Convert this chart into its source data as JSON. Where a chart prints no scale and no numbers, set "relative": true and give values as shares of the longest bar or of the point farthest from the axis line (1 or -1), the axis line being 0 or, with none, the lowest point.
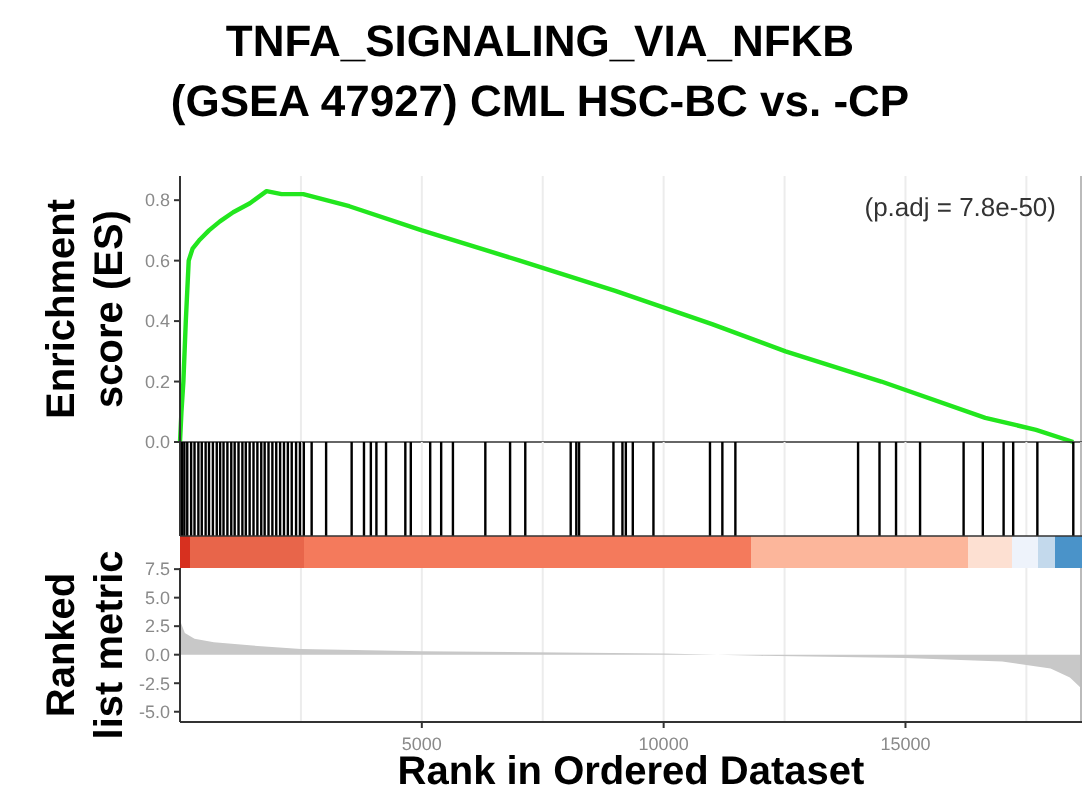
{
  "chart_data": [
    {
      "type": "line",
      "title": "TNFA_SIGNALING_VIA_NFKB\n(GSEA 47927) CML HSC-BC vs. -CP",
      "ylabel": "Enrichment\nscore (ES)",
      "annotations": [
        "(p.adj = 7.8e-50)"
      ],
      "tick_labels": "y",
      "grid": "x",
      "xlim": [
        0,
        18650
      ],
      "xticks": [
        {
          "value": 2500,
          "label": null
        },
        5000,
        {
          "value": 7500,
          "label": null
        },
        10000,
        {
          "value": 12500,
          "label": null
        },
        15000,
        {
          "value": 17500,
          "label": null
        }
      ],
      "ylim": [
        0,
        0.88
      ],
      "yticks": [
        {
          "value": 0,
          "label": "0.0"
        },
        0.2,
        0.4,
        0.6,
        0.8
      ],
      "series": [
        {
          "color": "#22e61e",
          "x": [
            0,
            30,
            70,
            120,
            180,
            260,
            413,
            600,
            826,
            1100,
            1446,
            1790,
            2100,
            2548,
            3500,
            5000,
            7025,
            9000,
            11000,
            12520,
            14500,
            16650,
            17700,
            18470
          ],
          "values": [
            0,
            0.1,
            0.2,
            0.4,
            0.6,
            0.64,
            0.67,
            0.7,
            0.73,
            0.76,
            0.79,
            0.83,
            0.82,
            0.82,
            0.78,
            0.7,
            0.6,
            0.5,
            0.39,
            0.3,
            0.2,
            0.08,
            0.04,
            0
          ]
        }
      ]
    },
    {
      "type": "bar",
      "relative": true,
      "tick_labels": false,
      "grid": "x",
      "xlim": [
        0,
        18650
      ],
      "xticks": [
        {
          "value": 2500,
          "label": null
        },
        {
          "value": 5000,
          "label": null
        },
        {
          "value": 7500,
          "label": null
        },
        {
          "value": 10000,
          "label": null
        },
        {
          "value": 12500,
          "label": null
        },
        {
          "value": 15000,
          "label": null
        },
        {
          "value": 17500,
          "label": null
        }
      ],
      "color": "#000000",
      "x": [
        40,
        90,
        150,
        230,
        300,
        380,
        450,
        530,
        600,
        680,
        760,
        830,
        900,
        980,
        1060,
        1130,
        1210,
        1290,
        1360,
        1440,
        1520,
        1600,
        1680,
        1750,
        1830,
        1910,
        1990,
        2070,
        2150,
        2230,
        2310,
        2400,
        2480,
        2560,
        2722,
        3021,
        3549,
        3804,
        3946,
        4061,
        4260,
        4659,
        4772,
        5173,
        5400,
        5643,
        6313,
        6825,
        7139,
        8078,
        8194,
        8251,
        8962,
        9148,
        9218,
        9362,
        9789,
        10958,
        11214,
        11483,
        14020,
        14463,
        14805,
        15302,
        16202,
        16599,
        17029,
        17227,
        17727,
        18470
      ],
      "values": [
        1,
        1,
        1,
        1,
        1,
        1,
        1,
        1,
        1,
        1,
        1,
        1,
        1,
        1,
        1,
        1,
        1,
        1,
        1,
        1,
        1,
        1,
        1,
        1,
        1,
        1,
        1,
        1,
        1,
        1,
        1,
        1,
        1,
        1,
        1,
        1,
        1,
        1,
        1,
        1,
        1,
        1,
        1,
        1,
        1,
        1,
        1,
        1,
        1,
        1,
        1,
        1,
        1,
        1,
        1,
        1,
        1,
        1,
        1,
        1,
        1,
        1,
        1,
        1,
        1,
        1,
        1,
        1,
        1,
        1
      ]
    },
    {
      "type": "area",
      "ylabel": "Ranked\nlist metric",
      "xlabel": "Rank in Ordered Dataset",
      "grid": "x",
      "xlim": [
        0,
        18650
      ],
      "xticks": [
        {
          "value": 2500,
          "label": null
        },
        5000,
        {
          "value": 7500,
          "label": null
        },
        10000,
        {
          "value": 12500,
          "label": null
        },
        15000,
        {
          "value": 17500,
          "label": null
        }
      ],
      "ylim": [
        -5.9,
        7.6
      ],
      "yticks": [
        {
          "value": -5,
          "label": "-5.0"
        },
        {
          "value": -2.5,
          "label": "-2.5"
        },
        {
          "value": 0,
          "label": "0.0"
        },
        2.5,
        {
          "value": 5,
          "label": "5.0"
        },
        7.5
      ],
      "series": [
        {
          "color": "#c8c8c8",
          "x": [
            0,
            100,
            300,
            700,
            1500,
            2500,
            5000,
            10000,
            12000,
            15000,
            17000,
            18000,
            18400,
            18650
          ],
          "values": [
            3,
            1.9,
            1.4,
            1.1,
            0.8,
            0.5,
            0.3,
            0.1,
            -0.1,
            -0.3,
            -0.6,
            -1.2,
            -2,
            -3
          ]
        }
      ]
    }
  ]
}
